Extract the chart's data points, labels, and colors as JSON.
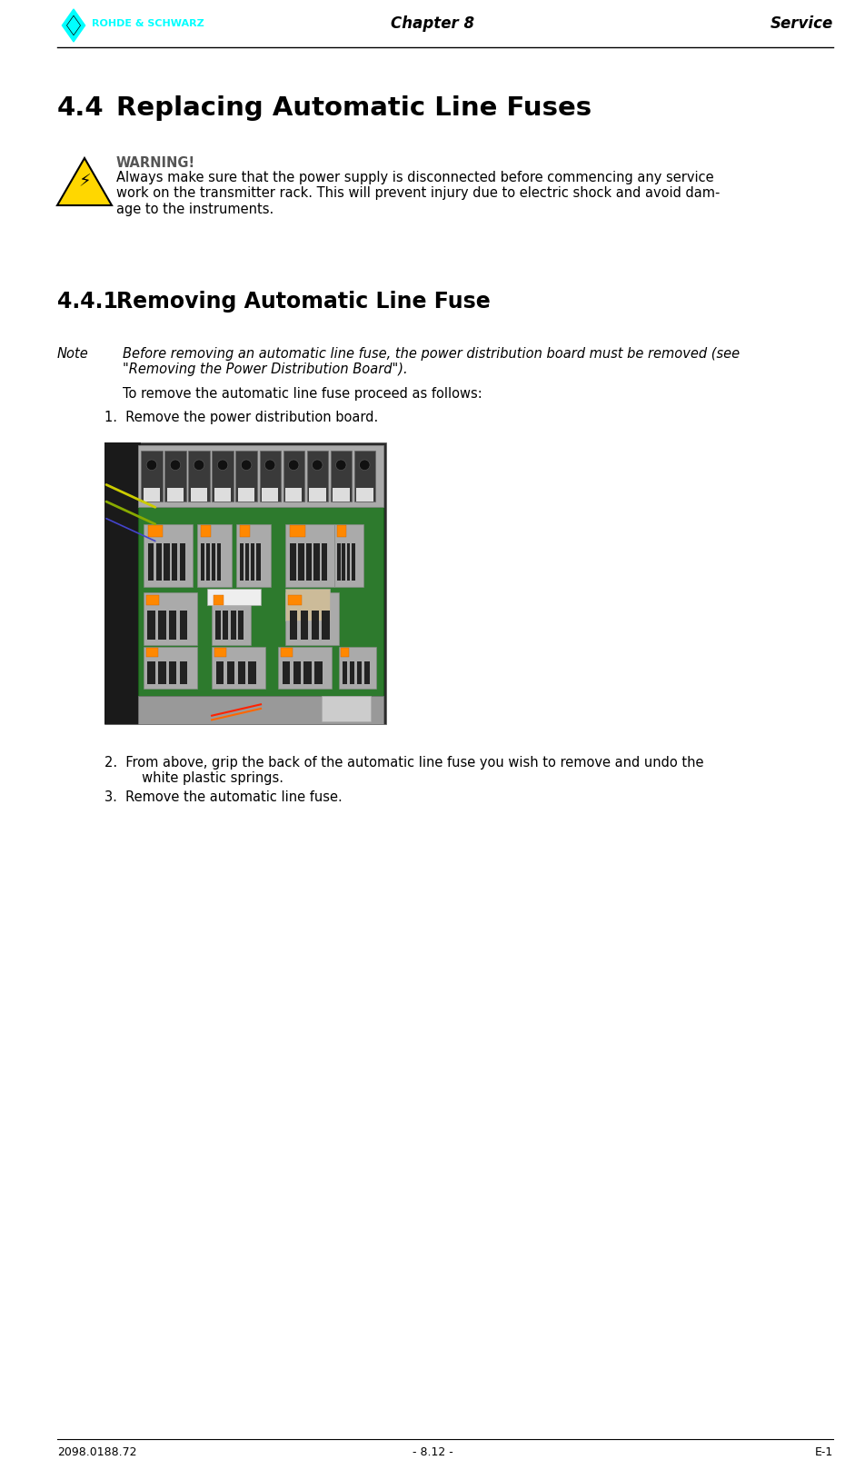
{
  "page_width": 9.52,
  "page_height": 16.29,
  "bg_color": "#ffffff",
  "logo_text": "ROHDE & SCHWARZ",
  "logo_color": "#00ffff",
  "header_center": "Chapter 8",
  "header_right": "Service",
  "footer_left": "2098.0188.72",
  "footer_center": "- 8.12 -",
  "footer_right": "E-1",
  "section_num": "4.4",
  "section_text": "Replacing Automatic Line Fuses",
  "subsection_num": "4.4.1",
  "subsection_text": "Removing Automatic Line Fuse",
  "warning_title": "WARNING!",
  "warning_line1": "Always make sure that the power supply is disconnected before commencing any service",
  "warning_line2": "work on the transmitter rack. This will prevent injury due to electric shock and avoid dam-",
  "warning_line3": "age to the instruments.",
  "note_label": "Note",
  "note_line1": "Before removing an automatic line fuse, the power distribution board must be removed (see",
  "note_line2": "\"Removing the Power Distribution Board\").",
  "intro_text": "To remove the automatic line fuse proceed as follows:",
  "step1": "1.  Remove the power distribution board.",
  "step2_line1": "2.  From above, grip the back of the automatic line fuse you wish to remove and undo the",
  "step2_line2": "     white plastic springs.",
  "step3": "3.  Remove the automatic line fuse.",
  "body_size": 10.5,
  "header_size": 12,
  "section_title_size": 21,
  "subsection_title_size": 17,
  "warning_title_size": 10.5,
  "footer_size": 9
}
